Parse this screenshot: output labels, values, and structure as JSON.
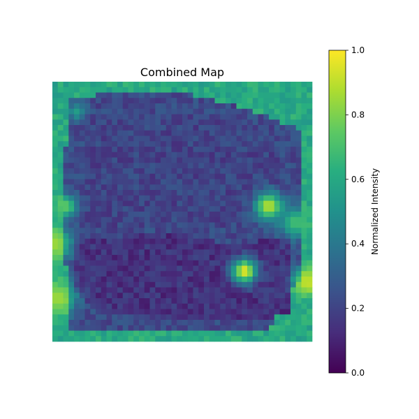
{
  "chart_data": {
    "type": "heatmap",
    "title": "Combined Map",
    "xlabel": "",
    "ylabel": "",
    "colormap": "viridis",
    "grid_size": [
      48,
      48
    ],
    "axes_visible": false,
    "colorbar": {
      "label": "Normalized Intensity",
      "range": [
        0.0,
        1.0
      ],
      "ticks": [
        0.0,
        0.2,
        0.4,
        0.6,
        0.8,
        1.0
      ],
      "tick_labels": [
        "0.0",
        "0.2",
        "0.4",
        "0.6",
        "0.8",
        "1.0"
      ],
      "placement": "right"
    },
    "background_level": 0.6,
    "texture_amplitude": 0.07,
    "regions": [
      {
        "kind": "polygon",
        "level": 0.22,
        "points": [
          [
            3,
            3
          ],
          [
            13,
            2
          ],
          [
            24,
            2
          ],
          [
            36,
            5
          ],
          [
            46,
            9
          ],
          [
            46,
            36
          ],
          [
            40,
            46
          ],
          [
            3,
            46
          ],
          [
            2,
            22
          ]
        ]
      },
      {
        "kind": "polygon",
        "level": 0.14,
        "points": [
          [
            4,
            29
          ],
          [
            22,
            28
          ],
          [
            33,
            30
          ],
          [
            44,
            29
          ],
          [
            44,
            43
          ],
          [
            38,
            44
          ],
          [
            25,
            44
          ],
          [
            10,
            43
          ],
          [
            4,
            39
          ]
        ]
      },
      {
        "kind": "polygon",
        "level": 0.2,
        "points": [
          [
            6,
            6
          ],
          [
            30,
            6
          ],
          [
            42,
            12
          ],
          [
            42,
            26
          ],
          [
            24,
            27
          ],
          [
            6,
            27
          ]
        ]
      }
    ],
    "blobs": [
      {
        "col": 35.5,
        "row": 35.0,
        "radius": 1.6,
        "level": 0.97
      },
      {
        "col": 40.0,
        "row": 23.0,
        "radius": 1.8,
        "level": 0.9
      },
      {
        "col": 47.0,
        "row": 37.0,
        "radius": 1.8,
        "level": 0.92
      },
      {
        "col": 0.5,
        "row": 30.0,
        "radius": 2.0,
        "level": 0.85
      },
      {
        "col": 1.0,
        "row": 40.0,
        "radius": 2.2,
        "level": 0.85
      },
      {
        "col": 2.5,
        "row": 23.0,
        "radius": 1.5,
        "level": 0.75
      },
      {
        "col": 4.5,
        "row": 5.5,
        "radius": 1.2,
        "level": 0.55
      },
      {
        "col": 45.0,
        "row": 26.0,
        "radius": 2.0,
        "level": 0.7
      }
    ]
  }
}
